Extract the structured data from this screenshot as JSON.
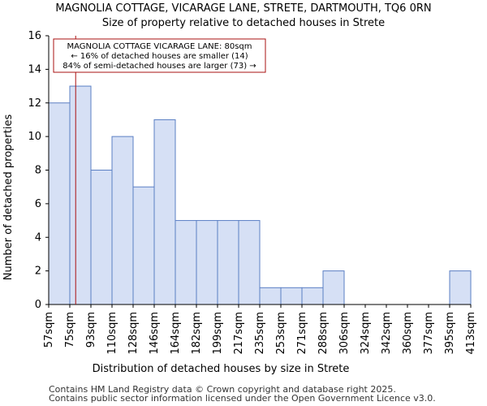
{
  "chart_data": {
    "type": "bar",
    "title": "MAGNOLIA COTTAGE, VICARAGE LANE, STRETE, DARTMOUTH, TQ6 0RN",
    "subtitle": "Size of property relative to detached houses in Strete",
    "xlabel": "Distribution of detached houses by size in Strete",
    "ylabel": "Number of detached properties",
    "bin_edges": [
      57,
      75,
      93,
      110,
      128,
      146,
      164,
      182,
      199,
      217,
      235,
      253,
      271,
      288,
      306,
      324,
      342,
      360,
      377,
      395,
      413
    ],
    "tick_labels": [
      "57sqm",
      "75sqm",
      "93sqm",
      "110sqm",
      "128sqm",
      "146sqm",
      "164sqm",
      "182sqm",
      "199sqm",
      "217sqm",
      "235sqm",
      "253sqm",
      "271sqm",
      "288sqm",
      "306sqm",
      "324sqm",
      "342sqm",
      "360sqm",
      "377sqm",
      "395sqm",
      "413sqm"
    ],
    "values": [
      12,
      13,
      8,
      10,
      7,
      11,
      5,
      5,
      5,
      5,
      1,
      1,
      1,
      2,
      0,
      0,
      0,
      0,
      0,
      2
    ],
    "ylim": [
      0,
      16
    ],
    "yticks": [
      0,
      2,
      4,
      6,
      8,
      10,
      12,
      14,
      16
    ],
    "grid": false,
    "bar_color": "#d6e0f5",
    "bar_edge_color": "#5b7fc4",
    "marker_value": 80,
    "marker_color": "#aa1111",
    "annotation": {
      "lines": [
        "MAGNOLIA COTTAGE VICARAGE LANE: 80sqm",
        "← 16% of detached houses are smaller (14)",
        "84% of semi-detached houses are larger (73) →"
      ],
      "border_color": "#aa1111"
    }
  },
  "footer": {
    "line1": "Contains HM Land Registry data © Crown copyright and database right 2025.",
    "line2": "Contains public sector information licensed under the Open Government Licence v3.0."
  }
}
